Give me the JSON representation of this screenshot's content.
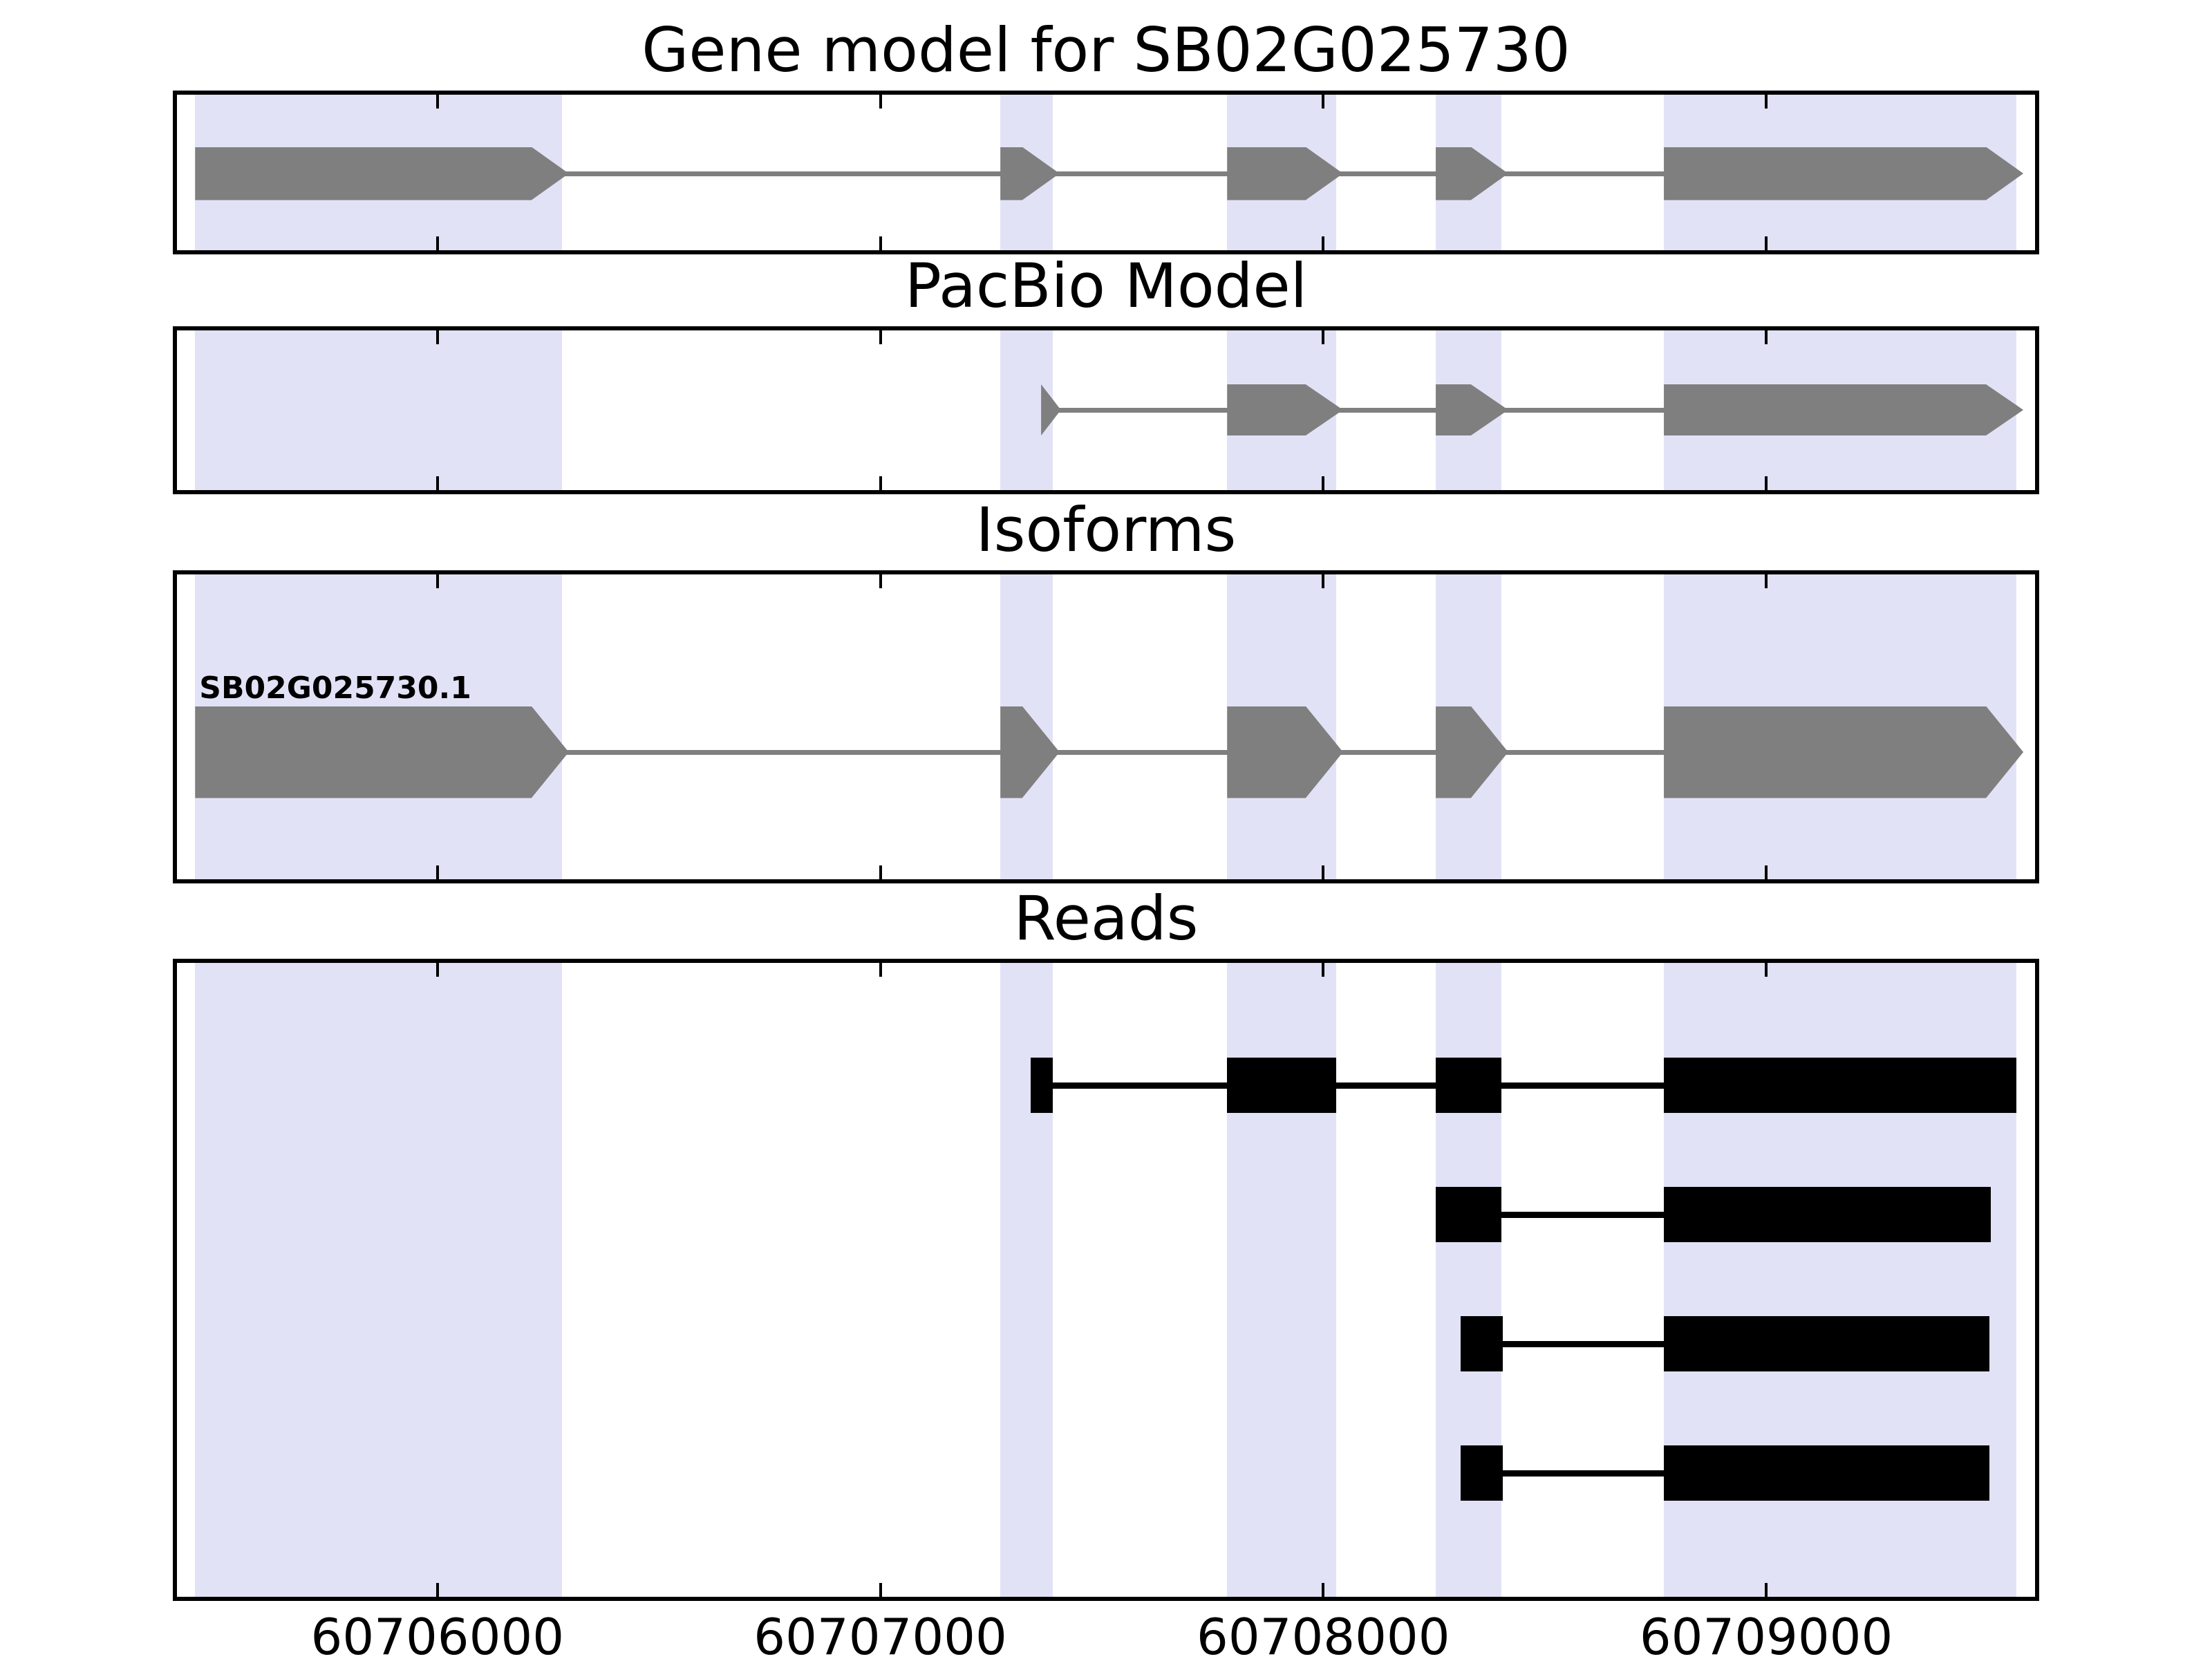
{
  "figure": {
    "background": "#ffffff",
    "axis_color": "#000000",
    "highlight_color": "#e2e2f7",
    "model_color": "#7f7f7f",
    "intron_color": "#7f7f7f",
    "read_color": "#000000"
  },
  "chart_data": {
    "type": "gene-model-tracks",
    "xlim": [
      60705412,
      60709607
    ],
    "x_tick_values": [
      60706000,
      60707000,
      60708000,
      60709000
    ],
    "x_ticks": [
      "60706000",
      "60707000",
      "60708000",
      "60709000"
    ],
    "highlight_regions": [
      [
        60705453,
        60706281
      ],
      [
        60707271,
        60707389
      ],
      [
        60707783,
        60708029
      ],
      [
        60708254,
        60708402
      ],
      [
        60708769,
        60709565
      ]
    ],
    "panels": [
      {
        "title": "Gene model for SB02G025730",
        "kind": "transcript",
        "strand": "+",
        "exons": [
          [
            60705453,
            60706281
          ],
          [
            60707271,
            60707389
          ],
          [
            60707783,
            60708029
          ],
          [
            60708254,
            60708402
          ],
          [
            60708769,
            60709565
          ]
        ]
      },
      {
        "title": "PacBio Model",
        "kind": "transcript",
        "strand": "+",
        "exons": [
          [
            60707363,
            60707392
          ],
          [
            60707783,
            60708029
          ],
          [
            60708254,
            60708402
          ],
          [
            60708769,
            60709565
          ]
        ]
      },
      {
        "title": "Isoforms",
        "kind": "transcript",
        "strand": "+",
        "label": "SB02G025730.1",
        "exons": [
          [
            60705453,
            60706281
          ],
          [
            60707271,
            60707389
          ],
          [
            60707783,
            60708029
          ],
          [
            60708254,
            60708402
          ],
          [
            60708769,
            60709565
          ]
        ]
      },
      {
        "title": "Reads",
        "kind": "reads",
        "reads": [
          {
            "segments": [
              [
                60707340,
                60707390
              ],
              [
                60707783,
                60708029
              ],
              [
                60708254,
                60708402
              ],
              [
                60708769,
                60709565
              ]
            ]
          },
          {
            "segments": [
              [
                60708254,
                60708402
              ],
              [
                60708769,
                60709507
              ]
            ]
          },
          {
            "segments": [
              [
                60708310,
                60708405
              ],
              [
                60708769,
                60709504
              ]
            ]
          },
          {
            "segments": [
              [
                60708310,
                60708405
              ],
              [
                60708769,
                60709504
              ]
            ]
          }
        ]
      }
    ]
  }
}
